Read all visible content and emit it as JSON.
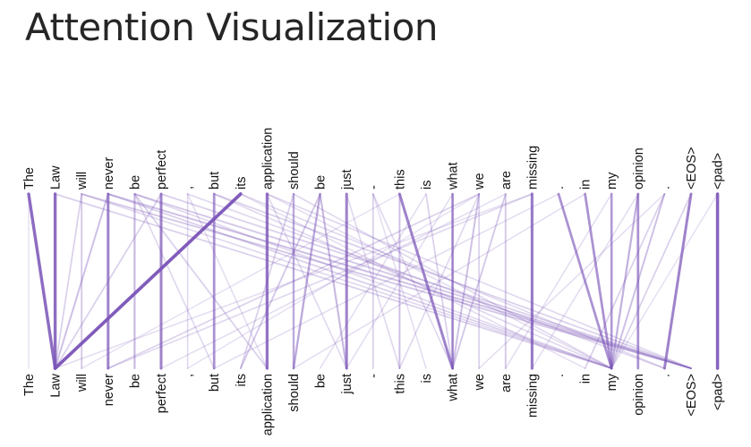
{
  "title": "Attention Visualization",
  "tokens": [
    "The",
    "Law",
    "will",
    "never",
    "be",
    "perfect",
    ",",
    "but",
    "its",
    "application",
    "should",
    "be",
    "just",
    "-",
    "this",
    "is",
    "what",
    "we",
    "are",
    "missing",
    ".",
    "in",
    "my",
    "opinion",
    ".",
    "<EOS>",
    "<pad>"
  ],
  "colors": {
    "attention": "#7b55b8",
    "text": "#111111",
    "title": "#262626",
    "background": "#ffffff"
  },
  "attention": [
    [
      0,
      1,
      0.85
    ],
    [
      1,
      1,
      0.85
    ],
    [
      2,
      2,
      0.25
    ],
    [
      3,
      3,
      0.7
    ],
    [
      4,
      4,
      0.35
    ],
    [
      5,
      5,
      0.7
    ],
    [
      6,
      6,
      0.15
    ],
    [
      7,
      7,
      0.6
    ],
    [
      9,
      9,
      0.8
    ],
    [
      10,
      10,
      0.45
    ],
    [
      12,
      12,
      0.7
    ],
    [
      13,
      13,
      0.2
    ],
    [
      14,
      14,
      0.3
    ],
    [
      16,
      16,
      0.4
    ],
    [
      17,
      17,
      0.2
    ],
    [
      18,
      18,
      0.25
    ],
    [
      19,
      19,
      0.75
    ],
    [
      23,
      23,
      0.6
    ],
    [
      26,
      26,
      0.9
    ],
    [
      8,
      1,
      0.95
    ],
    [
      3,
      1,
      0.3
    ],
    [
      0,
      0,
      0.1
    ],
    [
      2,
      1,
      0.2
    ],
    [
      5,
      1,
      0.2
    ],
    [
      11,
      10,
      0.45
    ],
    [
      11,
      12,
      0.35
    ],
    [
      11,
      8,
      0.25
    ],
    [
      4,
      9,
      0.2
    ],
    [
      4,
      7,
      0.15
    ],
    [
      10,
      8,
      0.2
    ],
    [
      9,
      12,
      0.15
    ],
    [
      14,
      16,
      0.7
    ],
    [
      16,
      16,
      0.5
    ],
    [
      17,
      16,
      0.3
    ],
    [
      18,
      16,
      0.25
    ],
    [
      15,
      16,
      0.2
    ],
    [
      13,
      16,
      0.15
    ],
    [
      17,
      14,
      0.15
    ],
    [
      20,
      22,
      0.6
    ],
    [
      21,
      22,
      0.6
    ],
    [
      22,
      22,
      0.55
    ],
    [
      23,
      22,
      0.4
    ],
    [
      24,
      22,
      0.3
    ],
    [
      25,
      24,
      0.7
    ],
    [
      25,
      22,
      0.2
    ],
    [
      24,
      21,
      0.2
    ],
    [
      2,
      25,
      0.25
    ],
    [
      3,
      25,
      0.3
    ],
    [
      4,
      25,
      0.25
    ],
    [
      5,
      25,
      0.2
    ],
    [
      6,
      24,
      0.15
    ],
    [
      7,
      25,
      0.2
    ],
    [
      8,
      24,
      0.15
    ],
    [
      1,
      22,
      0.2
    ],
    [
      2,
      22,
      0.15
    ],
    [
      3,
      22,
      0.2
    ],
    [
      4,
      22,
      0.15
    ],
    [
      7,
      22,
      0.15
    ],
    [
      9,
      25,
      0.15
    ],
    [
      10,
      22,
      0.15
    ],
    [
      17,
      3,
      0.18
    ],
    [
      19,
      3,
      0.15
    ],
    [
      18,
      5,
      0.12
    ],
    [
      20,
      7,
      0.12
    ],
    [
      21,
      10,
      0.12
    ],
    [
      16,
      12,
      0.12
    ],
    [
      15,
      11,
      0.12
    ],
    [
      22,
      18,
      0.12
    ],
    [
      23,
      19,
      0.12
    ],
    [
      24,
      17,
      0.12
    ],
    [
      19,
      1,
      0.12
    ],
    [
      17,
      6,
      0.1
    ],
    [
      14,
      2,
      0.1
    ],
    [
      8,
      21,
      0.12
    ],
    [
      9,
      22,
      0.12
    ],
    [
      6,
      9,
      0.12
    ],
    [
      12,
      14,
      0.15
    ],
    [
      13,
      15,
      0.12
    ],
    [
      26,
      22,
      0.1
    ]
  ]
}
